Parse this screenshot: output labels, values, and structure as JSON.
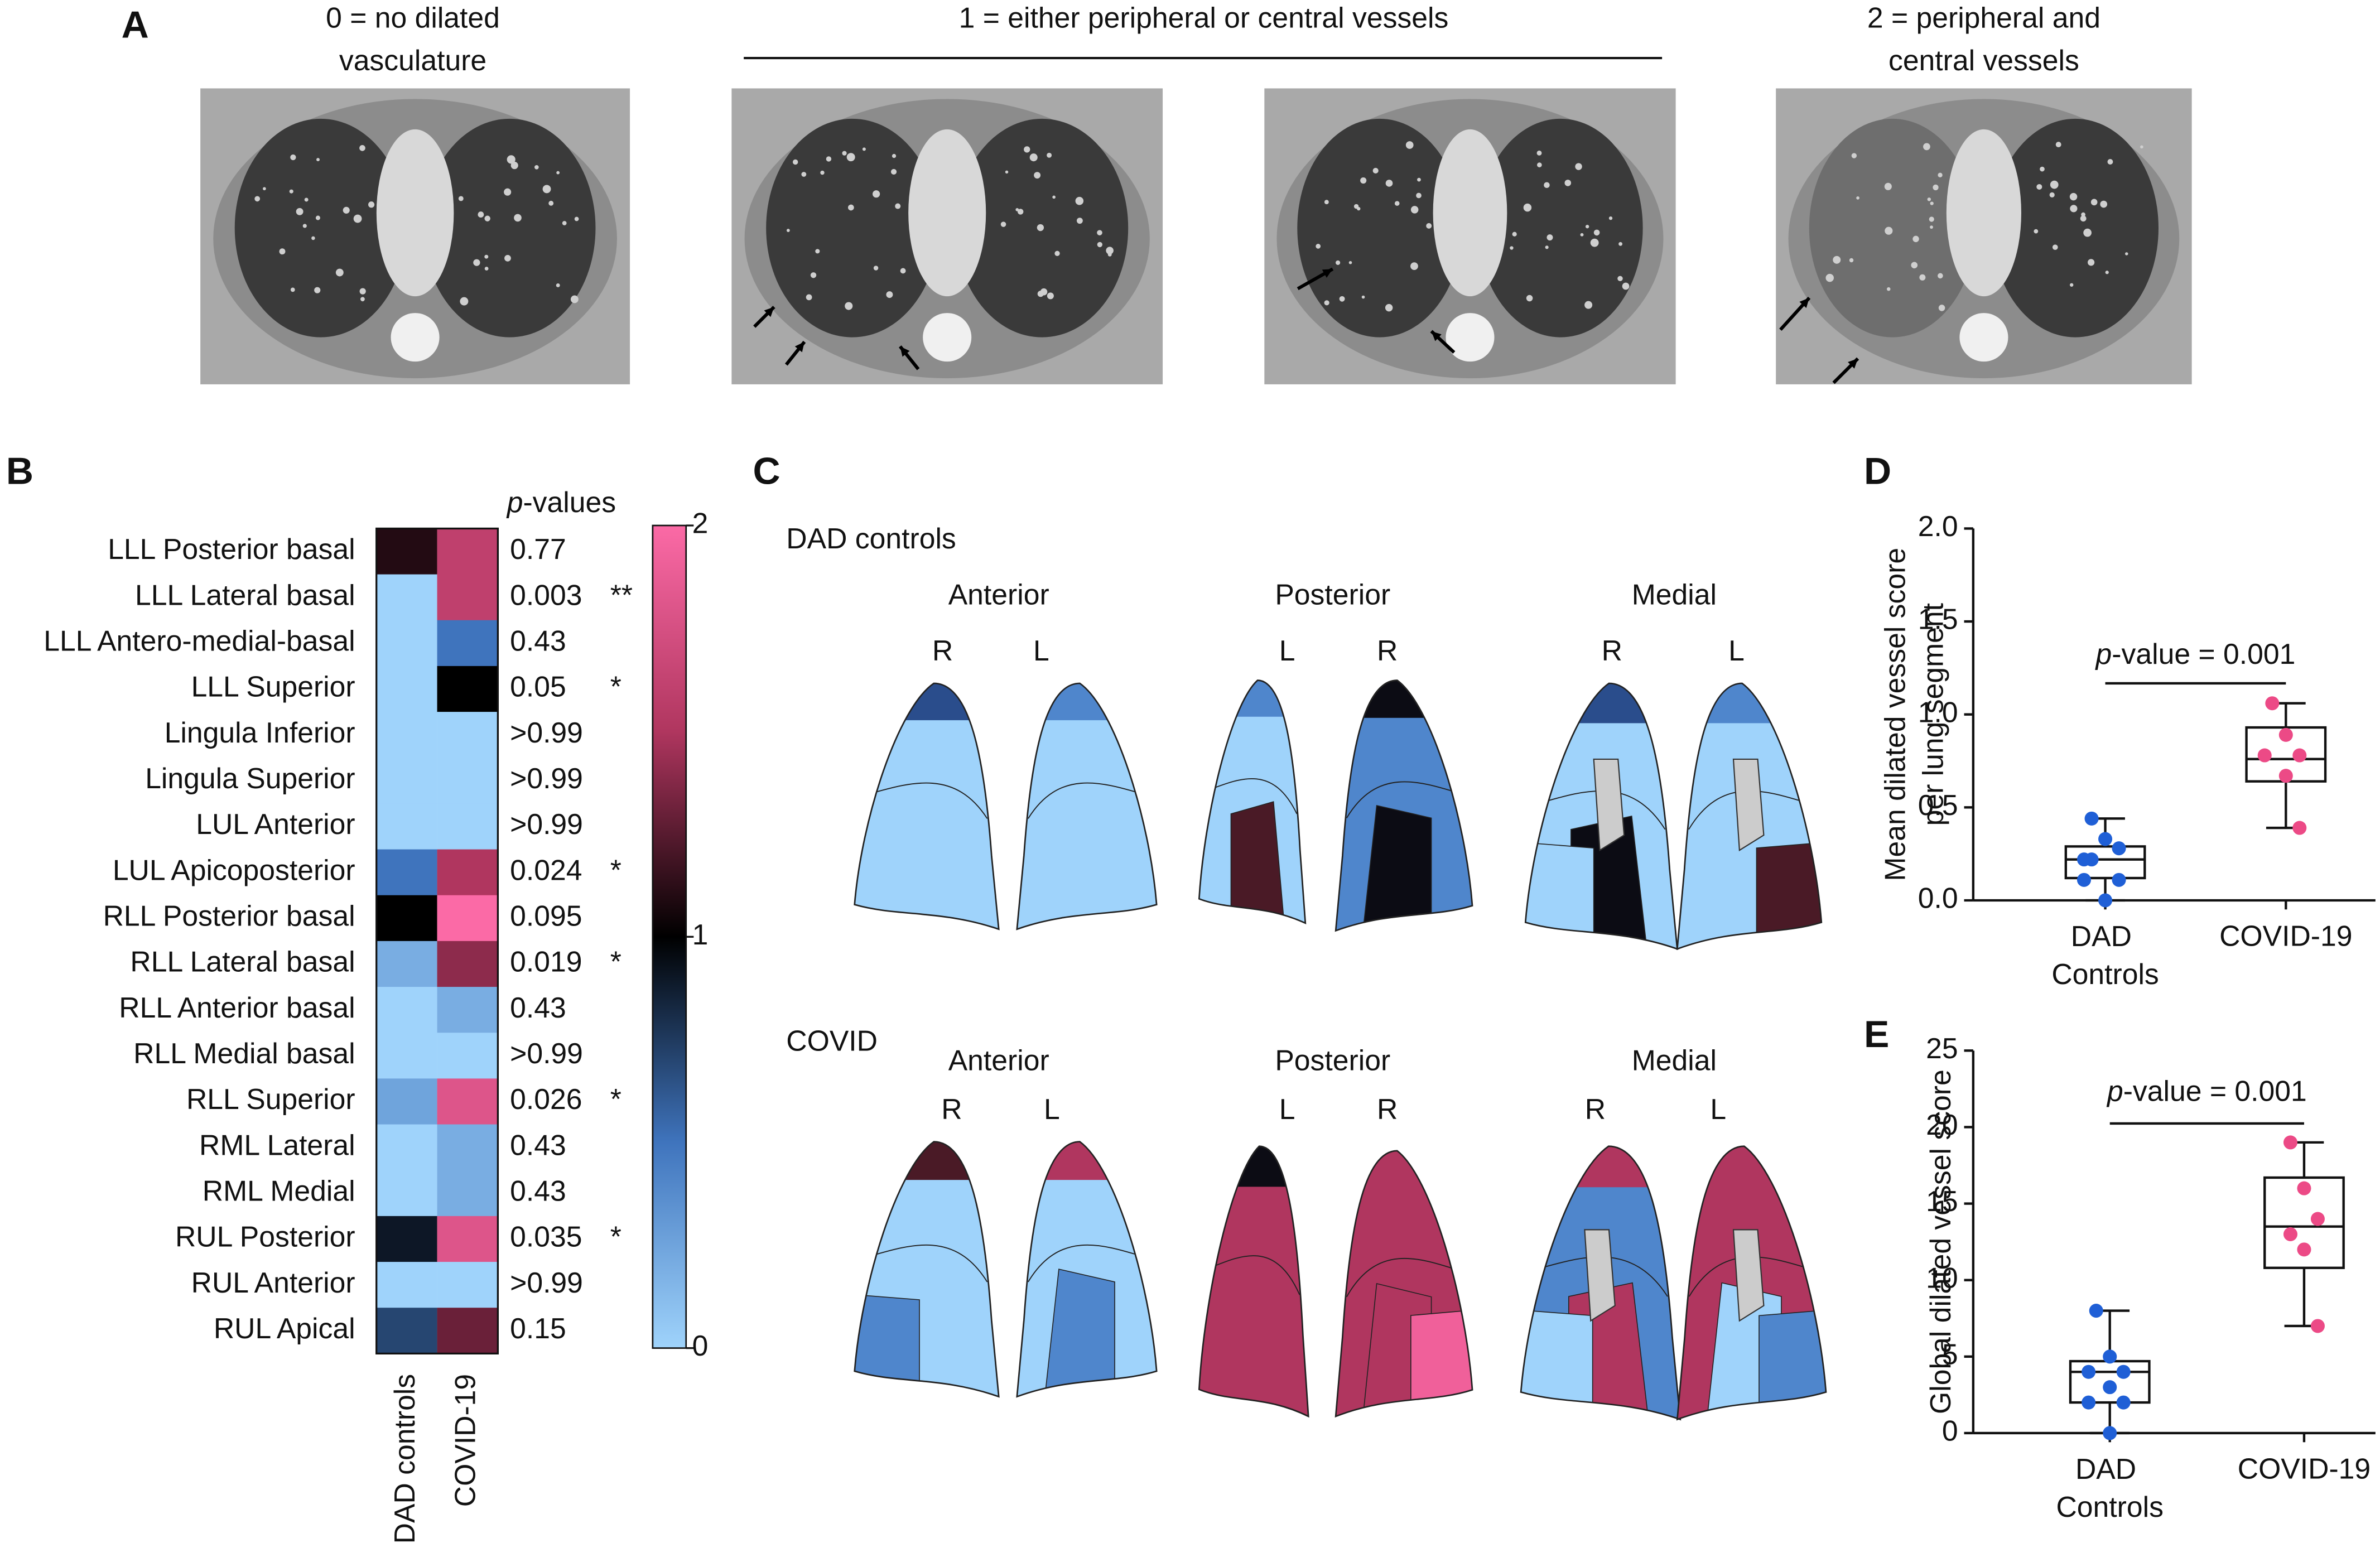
{
  "panel_labels": [
    "A",
    "B",
    "C",
    "D",
    "E"
  ],
  "panel_a": {
    "captions": [
      [
        "0 = no dilated",
        "vasculature"
      ],
      [
        "1 = either peripheral or central vessels"
      ],
      [
        "2 = peripheral and",
        "central vessels"
      ]
    ]
  },
  "panel_c": {
    "groups": [
      "DAD controls",
      "COVID"
    ],
    "views": [
      "Anterior",
      "Posterior",
      "Medial"
    ],
    "sides": [
      "R",
      "L",
      "L",
      "R",
      "R",
      "L"
    ]
  },
  "chart_data": [
    {
      "type": "heatmap",
      "categories": [
        "LLL Posterior basal",
        "LLL Lateral basal",
        "LLL Antero-medial-basal",
        "LLL Superior",
        "Lingula Inferior",
        "Lingula Superior",
        "LUL Anterior",
        "LUL Apicoposterior",
        "RLL Posterior basal",
        "RLL Lateral basal",
        "RLL Anterior basal",
        "RLL Medial basal",
        "RLL Superior",
        "RML Lateral",
        "RML Medial",
        "RUL Posterior",
        "RUL Anterior",
        "RUL Apical"
      ],
      "columns": [
        "DAD controls",
        "COVID-19"
      ],
      "values": [
        [
          1.1,
          1.6
        ],
        [
          0,
          1.6
        ],
        [
          0,
          0.5
        ],
        [
          0,
          1.0
        ],
        [
          0,
          0
        ],
        [
          0,
          0
        ],
        [
          0,
          0
        ],
        [
          0.5,
          1.5
        ],
        [
          1.0,
          2.0
        ],
        [
          0.2,
          1.4
        ],
        [
          0,
          0.2
        ],
        [
          0,
          0
        ],
        [
          0.25,
          1.8
        ],
        [
          0,
          0.2
        ],
        [
          0,
          0.2
        ],
        [
          0.9,
          1.8
        ],
        [
          0,
          0
        ],
        [
          0.7,
          1.3
        ]
      ],
      "p_values_label": "p-values",
      "p_values": [
        "0.77",
        "0.003",
        "0.43",
        "0.05",
        ">0.99",
        ">0.99",
        ">0.99",
        "0.024",
        "0.095",
        "0.019",
        "0.43",
        ">0.99",
        "0.026",
        "0.43",
        "0.43",
        "0.035",
        ">0.99",
        "0.15"
      ],
      "significance": [
        null,
        "**",
        null,
        "*",
        null,
        null,
        null,
        "*",
        null,
        "*",
        null,
        null,
        "*",
        null,
        null,
        "*",
        null,
        null
      ],
      "zlim": [
        0,
        2
      ],
      "zticks": [
        0,
        1,
        2
      ],
      "colormap": [
        "#9fd3fb",
        "#3f74bd",
        "#000000",
        "#b0365f",
        "#fb6aa6"
      ]
    },
    {
      "type": "box",
      "ylabel": [
        "Mean dilated vessel score",
        "per lung segment"
      ],
      "annotation": "p-value = 0.001",
      "categories": [
        "DAD Controls",
        "COVID-19"
      ],
      "colors": [
        "#1f5fd6",
        "#ec4a86"
      ],
      "points": [
        [
          0.44,
          0.33,
          0.28,
          0.22,
          0.22,
          0.11,
          0.11,
          0.0
        ],
        [
          1.06,
          0.89,
          0.78,
          0.78,
          0.67,
          0.39
        ]
      ],
      "boxes": [
        {
          "min": 0.0,
          "q1": 0.12,
          "median": 0.22,
          "q3": 0.29,
          "max": 0.44
        },
        {
          "min": 0.39,
          "q1": 0.64,
          "median": 0.76,
          "q3": 0.93,
          "max": 1.06
        }
      ],
      "ylim": [
        0,
        2.0
      ],
      "yticks": [
        {
          "value": 0,
          "label": "0.0"
        },
        0.5,
        {
          "value": 1,
          "label": "1.0"
        },
        1.5,
        {
          "value": 2,
          "label": "2.0"
        }
      ]
    },
    {
      "type": "box",
      "ylabel": [
        "Global dilated vessel score"
      ],
      "annotation": "p-value = 0.001",
      "categories": [
        "DAD Controls",
        "COVID-19"
      ],
      "colors": [
        "#1f5fd6",
        "#ec4a86"
      ],
      "points": [
        [
          8,
          5,
          4,
          4,
          3,
          2,
          2,
          0
        ],
        [
          19,
          16,
          14,
          13,
          12,
          7
        ]
      ],
      "boxes": [
        {
          "min": 0,
          "q1": 2,
          "median": 4,
          "q3": 4.7,
          "max": 8
        },
        {
          "min": 7,
          "q1": 10.8,
          "median": 13.5,
          "q3": 16.7,
          "max": 19
        }
      ],
      "ylim": [
        0,
        25
      ],
      "yticks": [
        0,
        5,
        10,
        15,
        20,
        25
      ]
    }
  ]
}
